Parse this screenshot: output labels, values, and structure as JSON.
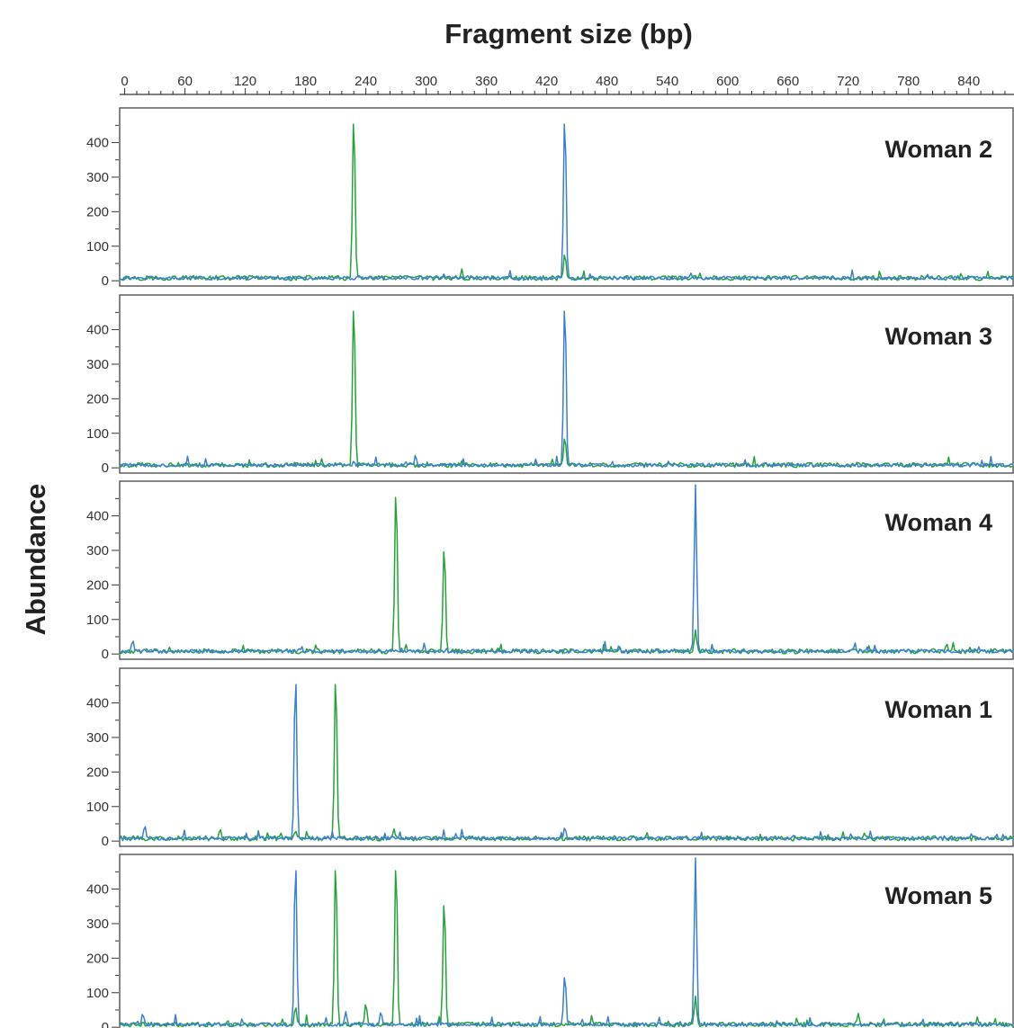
{
  "chart_data": {
    "type": "line",
    "title": "Fragment size (bp)",
    "ylabel": "Abundance",
    "xlim": [
      -5,
      885
    ],
    "ylim": [
      -10,
      490
    ],
    "x_ticks": [
      0,
      60,
      120,
      180,
      240,
      300,
      360,
      420,
      480,
      540,
      600,
      660,
      720,
      780,
      840
    ],
    "y_ticks": [
      0,
      100,
      200,
      300,
      400
    ],
    "grid": false,
    "colors": {
      "blue": "#3b7fd0",
      "green": "#22a337"
    },
    "panels": [
      {
        "label": "Woman 2",
        "peaks": {
          "blue": [
            [
              438,
              490
            ],
            [
              213,
              12
            ]
          ],
          "green": [
            [
              228,
              490
            ],
            [
              438,
              80
            ]
          ]
        }
      },
      {
        "label": "Woman 3",
        "peaks": {
          "blue": [
            [
              438,
              490
            ],
            [
              228,
              20
            ]
          ],
          "green": [
            [
              228,
              490
            ],
            [
              438,
              90
            ]
          ]
        }
      },
      {
        "label": "Woman 4",
        "peaks": {
          "blue": [
            [
              568,
              490
            ],
            [
              8,
              40
            ],
            [
              270,
              12
            ],
            [
              492,
              25
            ]
          ],
          "green": [
            [
              270,
              490
            ],
            [
              318,
              320
            ],
            [
              568,
              70
            ],
            [
              818,
              30
            ]
          ]
        }
      },
      {
        "label": "Woman 1",
        "peaks": {
          "blue": [
            [
              170,
              490
            ],
            [
              20,
              45
            ],
            [
              438,
              40
            ]
          ],
          "green": [
            [
              210,
              490
            ],
            [
              170,
              30
            ],
            [
              95,
              35
            ],
            [
              268,
              35
            ]
          ]
        }
      },
      {
        "label": "Woman 5",
        "peaks": {
          "blue": [
            [
              170,
              490
            ],
            [
              568,
              490
            ],
            [
              438,
              155
            ],
            [
              18,
              40
            ],
            [
              220,
              45
            ],
            [
              255,
              45
            ]
          ],
          "green": [
            [
              210,
              490
            ],
            [
              270,
              490
            ],
            [
              318,
              380
            ],
            [
              170,
              60
            ],
            [
              568,
              90
            ],
            [
              240,
              70
            ],
            [
              730,
              40
            ]
          ]
        }
      }
    ]
  }
}
